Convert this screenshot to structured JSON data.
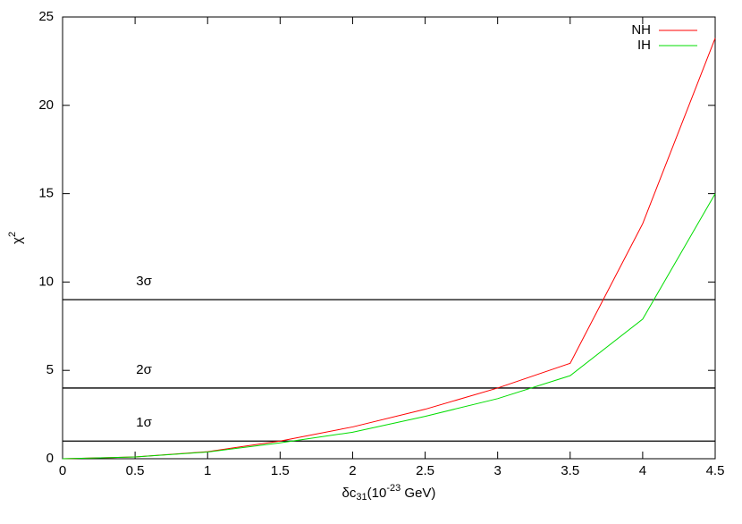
{
  "chart_data": {
    "type": "line",
    "x_label": {
      "base": "δc",
      "sub": "31",
      "mid": "(10",
      "sup": "-23",
      "end": " GeV)"
    },
    "y_label": {
      "base": "χ",
      "sup": "2"
    },
    "x": [
      0,
      0.5,
      1,
      1.5,
      2,
      2.5,
      3,
      3.5,
      4,
      4.5
    ],
    "series": [
      {
        "name": "NH",
        "color": "#ff0000",
        "values": [
          0,
          0.1,
          0.4,
          1.0,
          1.8,
          2.8,
          4.0,
          5.4,
          13.3,
          23.8
        ]
      },
      {
        "name": "IH",
        "color": "#00dd00",
        "values": [
          0,
          0.1,
          0.38,
          0.9,
          1.5,
          2.4,
          3.4,
          4.7,
          7.9,
          15.0
        ]
      }
    ],
    "reference_lines": [
      {
        "value": 1,
        "label": "1σ"
      },
      {
        "value": 4,
        "label": "2σ"
      },
      {
        "value": 9,
        "label": "3σ"
      }
    ],
    "reference_label_x": 0.5,
    "xlim": [
      0,
      4.5
    ],
    "xticks": [
      0,
      0.5,
      1,
      1.5,
      2,
      2.5,
      3,
      3.5,
      4,
      4.5
    ],
    "ylim": [
      0,
      25
    ],
    "yticks": [
      0,
      5,
      10,
      15,
      20,
      25
    ],
    "legend": "top-right"
  }
}
